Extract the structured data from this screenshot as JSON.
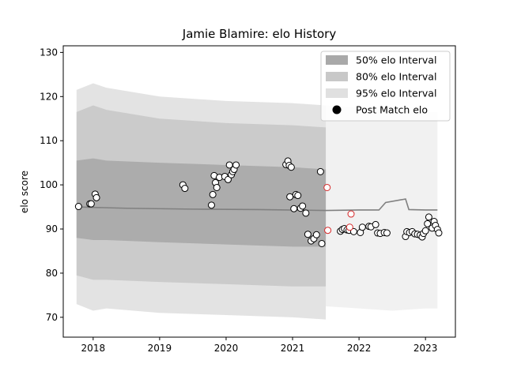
{
  "chart_data": {
    "type": "scatter",
    "title": "Jamie Blamire: elo History",
    "xlabel": "",
    "ylabel": "elo score",
    "xlim": [
      2017.55,
      2023.45
    ],
    "ylim": [
      65.5,
      131.5
    ],
    "x_ticks": [
      2018,
      2019,
      2020,
      2021,
      2022,
      2023
    ],
    "x_tick_labels": [
      "2018",
      "2019",
      "2020",
      "2021",
      "2022",
      "2023"
    ],
    "y_ticks": [
      70,
      80,
      90,
      100,
      110,
      120,
      130
    ],
    "y_tick_labels": [
      "70",
      "80",
      "90",
      "100",
      "110",
      "120",
      "130"
    ],
    "grid": false,
    "legend": {
      "position": "top-right",
      "entries": [
        {
          "label": "50% elo Interval",
          "color": "#a9a9a9"
        },
        {
          "label": "80% elo Interval",
          "color": "#c8c8c8"
        },
        {
          "label": "95% elo Interval",
          "color": "#e0e0e0"
        },
        {
          "label": "Post Match elo",
          "color": "#000000"
        }
      ]
    },
    "bands": [
      {
        "name": "95% elo Interval",
        "color": "#e0e0e0",
        "x": [
          2017.75,
          2018.0,
          2018.2,
          2019.0,
          2020.0,
          2021.0,
          2021.5
        ],
        "upper": [
          121.5,
          123.0,
          122.0,
          120.0,
          119.0,
          118.5,
          118.0
        ],
        "lower": [
          73.0,
          71.5,
          72.0,
          71.0,
          70.5,
          70.0,
          69.5
        ]
      },
      {
        "name": "80% elo Interval",
        "color": "#c8c8c8",
        "x": [
          2017.75,
          2018.0,
          2018.2,
          2019.0,
          2020.0,
          2021.0,
          2021.5
        ],
        "upper": [
          116.5,
          118.0,
          117.0,
          115.0,
          114.0,
          113.5,
          113.0
        ],
        "lower": [
          79.5,
          78.5,
          78.5,
          78.0,
          77.5,
          77.0,
          77.0
        ]
      },
      {
        "name": "50% elo Interval",
        "color": "#a9a9a9",
        "x": [
          2017.75,
          2018.0,
          2018.2,
          2019.0,
          2020.0,
          2021.0,
          2021.5
        ],
        "upper": [
          105.5,
          106.0,
          105.5,
          105.0,
          104.5,
          104.0,
          103.5
        ],
        "lower": [
          88.0,
          87.5,
          87.5,
          87.0,
          86.5,
          86.0,
          86.0
        ]
      }
    ],
    "faint_band": {
      "color": "#e6e6e6",
      "x": [
        2021.5,
        2022.0,
        2022.5,
        2023.0,
        2023.18
      ],
      "upper": [
        118.0,
        117.5,
        117.0,
        116.5,
        116.5
      ],
      "lower": [
        72.5,
        72.0,
        71.5,
        72.0,
        72.0
      ]
    },
    "mean_line": {
      "color": "#808080",
      "x": [
        2017.75,
        2018.5,
        2019.5,
        2020.5,
        2021.5,
        2022.0,
        2022.3,
        2022.4,
        2022.7,
        2022.75,
        2023.0,
        2023.18
      ],
      "y": [
        95.0,
        94.7,
        94.5,
        94.4,
        94.2,
        94.3,
        94.3,
        96.0,
        96.8,
        94.4,
        94.3,
        94.3
      ]
    },
    "points": [
      {
        "x": 2017.78,
        "y": 95.1
      },
      {
        "x": 2017.95,
        "y": 95.7
      },
      {
        "x": 2017.97,
        "y": 95.7
      },
      {
        "x": 2018.03,
        "y": 97.9
      },
      {
        "x": 2018.05,
        "y": 97.1
      },
      {
        "x": 2019.35,
        "y": 100.0
      },
      {
        "x": 2019.38,
        "y": 99.2
      },
      {
        "x": 2019.78,
        "y": 95.4
      },
      {
        "x": 2019.8,
        "y": 97.8
      },
      {
        "x": 2019.82,
        "y": 102.1
      },
      {
        "x": 2019.84,
        "y": 100.5
      },
      {
        "x": 2019.86,
        "y": 99.4
      },
      {
        "x": 2019.9,
        "y": 101.7
      },
      {
        "x": 2019.98,
        "y": 101.9
      },
      {
        "x": 2020.03,
        "y": 101.2
      },
      {
        "x": 2020.05,
        "y": 104.5
      },
      {
        "x": 2020.08,
        "y": 102.3
      },
      {
        "x": 2020.1,
        "y": 103.0
      },
      {
        "x": 2020.12,
        "y": 103.5
      },
      {
        "x": 2020.15,
        "y": 104.5
      },
      {
        "x": 2020.9,
        "y": 104.6
      },
      {
        "x": 2020.93,
        "y": 105.4
      },
      {
        "x": 2020.95,
        "y": 104.4
      },
      {
        "x": 2020.98,
        "y": 104.0
      },
      {
        "x": 2020.96,
        "y": 97.3
      },
      {
        "x": 2021.02,
        "y": 94.6
      },
      {
        "x": 2021.05,
        "y": 97.8
      },
      {
        "x": 2021.08,
        "y": 97.6
      },
      {
        "x": 2021.12,
        "y": 94.7
      },
      {
        "x": 2021.15,
        "y": 95.2
      },
      {
        "x": 2021.2,
        "y": 93.6
      },
      {
        "x": 2021.23,
        "y": 88.8
      },
      {
        "x": 2021.28,
        "y": 87.3
      },
      {
        "x": 2021.32,
        "y": 87.8
      },
      {
        "x": 2021.36,
        "y": 88.7
      },
      {
        "x": 2021.42,
        "y": 103.0
      },
      {
        "x": 2021.44,
        "y": 86.7
      },
      {
        "x": 2021.72,
        "y": 89.5
      },
      {
        "x": 2021.75,
        "y": 89.9
      },
      {
        "x": 2021.78,
        "y": 90.1
      },
      {
        "x": 2021.82,
        "y": 89.8
      },
      {
        "x": 2021.85,
        "y": 89.7
      },
      {
        "x": 2021.92,
        "y": 89.4
      },
      {
        "x": 2022.02,
        "y": 89.2
      },
      {
        "x": 2022.05,
        "y": 90.4
      },
      {
        "x": 2022.15,
        "y": 90.6
      },
      {
        "x": 2022.18,
        "y": 90.5
      },
      {
        "x": 2022.25,
        "y": 91.0
      },
      {
        "x": 2022.28,
        "y": 89.1
      },
      {
        "x": 2022.32,
        "y": 89.0
      },
      {
        "x": 2022.38,
        "y": 89.2
      },
      {
        "x": 2022.42,
        "y": 89.1
      },
      {
        "x": 2022.7,
        "y": 88.3
      },
      {
        "x": 2022.72,
        "y": 89.4
      },
      {
        "x": 2022.76,
        "y": 89.2
      },
      {
        "x": 2022.8,
        "y": 89.4
      },
      {
        "x": 2022.84,
        "y": 88.9
      },
      {
        "x": 2022.88,
        "y": 88.8
      },
      {
        "x": 2022.92,
        "y": 88.6
      },
      {
        "x": 2022.95,
        "y": 88.2
      },
      {
        "x": 2022.97,
        "y": 89.0
      },
      {
        "x": 2023.0,
        "y": 89.6
      },
      {
        "x": 2023.03,
        "y": 91.2
      },
      {
        "x": 2023.05,
        "y": 92.7
      },
      {
        "x": 2023.1,
        "y": 90.2
      },
      {
        "x": 2023.13,
        "y": 91.7
      },
      {
        "x": 2023.15,
        "y": 90.8
      },
      {
        "x": 2023.18,
        "y": 89.9
      },
      {
        "x": 2023.2,
        "y": 89.1
      }
    ],
    "red_points": [
      {
        "x": 2021.52,
        "y": 99.4
      },
      {
        "x": 2021.53,
        "y": 89.7
      },
      {
        "x": 2021.88,
        "y": 93.4
      },
      {
        "x": 2021.86,
        "y": 90.4
      }
    ]
  }
}
